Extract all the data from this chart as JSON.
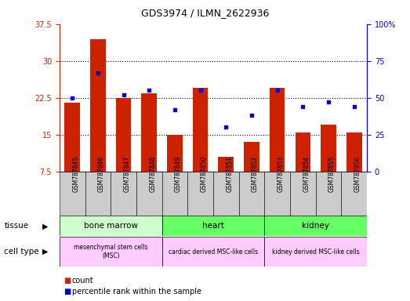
{
  "title": "GDS3974 / ILMN_2622936",
  "samples": [
    "GSM787845",
    "GSM787846",
    "GSM787847",
    "GSM787848",
    "GSM787849",
    "GSM787850",
    "GSM787851",
    "GSM787852",
    "GSM787853",
    "GSM787854",
    "GSM787855",
    "GSM787856"
  ],
  "bar_values": [
    21.5,
    34.5,
    22.5,
    23.5,
    15.0,
    24.5,
    10.5,
    13.5,
    24.5,
    15.5,
    17.0,
    15.5
  ],
  "dot_values": [
    50,
    67,
    52,
    55,
    42,
    55,
    30,
    38,
    55,
    44,
    47,
    44
  ],
  "ylim_left": [
    7.5,
    37.5
  ],
  "ylim_right": [
    0,
    100
  ],
  "yticks_left": [
    7.5,
    15.0,
    22.5,
    30.0,
    37.5
  ],
  "ytick_labels_left": [
    "7.5",
    "15",
    "22.5",
    "30",
    "37.5"
  ],
  "yticks_right": [
    0,
    25,
    50,
    75,
    100
  ],
  "ytick_labels_right": [
    "0",
    "25",
    "50",
    "75",
    "100%"
  ],
  "bar_color": "#cc2200",
  "dot_color": "#0000cc",
  "tissue_groups": [
    {
      "label": "bone marrow",
      "start": 0,
      "end": 4,
      "color": "#ccffcc"
    },
    {
      "label": "heart",
      "start": 4,
      "end": 8,
      "color": "#66ff66"
    },
    {
      "label": "kidney",
      "start": 8,
      "end": 12,
      "color": "#66ff66"
    }
  ],
  "cell_type_groups": [
    {
      "label": "mesenchymal stem cells\n(MSC)",
      "start": 0,
      "end": 4,
      "color": "#ffccff"
    },
    {
      "label": "cardiac derived MSC-like cells",
      "start": 4,
      "end": 8,
      "color": "#ffccff"
    },
    {
      "label": "kidney derived MSC-like cells",
      "start": 8,
      "end": 12,
      "color": "#ffccff"
    }
  ],
  "tissue_label": "tissue",
  "cell_type_label": "cell type",
  "legend_count": "count",
  "legend_pct": "percentile rank within the sample",
  "tick_label_color_left": "#cc2200",
  "tick_label_color_right": "#0000cc",
  "sample_bg_color": "#cccccc",
  "grid_color": "#000000"
}
